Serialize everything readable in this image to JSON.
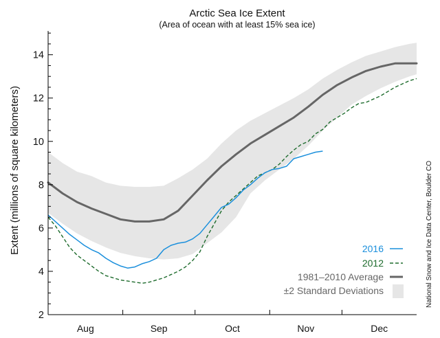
{
  "chart_data": {
    "type": "line",
    "title": "Arctic Sea Ice Extent",
    "subtitle": "(Area of ocean with at least 15% sea ice)",
    "xlabel": "",
    "ylabel": "Extent (millions of square kilometers)",
    "ylim": [
      2,
      15.1
    ],
    "yticks": [
      2,
      4,
      6,
      8,
      10,
      12,
      14
    ],
    "xlim": [
      0,
      153
    ],
    "month_boundaries": [
      31,
      61,
      92,
      122
    ],
    "month_labels": [
      {
        "label": "Aug",
        "x": 15.5
      },
      {
        "label": "Sep",
        "x": 46
      },
      {
        "label": "Oct",
        "x": 76.5
      },
      {
        "label": "Nov",
        "x": 107
      },
      {
        "label": "Dec",
        "x": 137.5
      }
    ],
    "series": [
      {
        "name": "±2 Standard Deviations",
        "kind": "band",
        "color": "#e6e6e6",
        "x": [
          0,
          6,
          12,
          18,
          24,
          30,
          36,
          42,
          48,
          54,
          60,
          66,
          72,
          78,
          84,
          90,
          96,
          102,
          108,
          114,
          120,
          126,
          132,
          138,
          144,
          150,
          153
        ],
        "upper": [
          9.5,
          9.0,
          8.6,
          8.4,
          8.1,
          7.95,
          7.9,
          7.9,
          7.95,
          8.3,
          8.7,
          9.2,
          9.9,
          10.5,
          10.95,
          11.3,
          11.65,
          12.0,
          12.4,
          12.9,
          13.3,
          13.65,
          13.95,
          14.15,
          14.35,
          14.5,
          14.55
        ],
        "lower": [
          6.7,
          6.2,
          5.75,
          5.4,
          5.1,
          4.85,
          4.7,
          4.6,
          4.55,
          4.6,
          4.8,
          5.3,
          5.8,
          6.5,
          7.6,
          8.2,
          8.7,
          9.2,
          9.8,
          10.5,
          11.1,
          11.7,
          12.1,
          12.45,
          12.75,
          13.0,
          13.1
        ]
      },
      {
        "name": "1981–2010 Average",
        "color": "#666666",
        "x": [
          0,
          6,
          12,
          18,
          24,
          30,
          36,
          42,
          48,
          54,
          60,
          66,
          72,
          78,
          84,
          90,
          96,
          102,
          108,
          114,
          120,
          126,
          132,
          138,
          144,
          150,
          153
        ],
        "values": [
          8.1,
          7.6,
          7.2,
          6.9,
          6.65,
          6.4,
          6.3,
          6.3,
          6.4,
          6.8,
          7.5,
          8.2,
          8.85,
          9.4,
          9.9,
          10.3,
          10.7,
          11.1,
          11.6,
          12.15,
          12.6,
          12.95,
          13.25,
          13.45,
          13.6,
          13.6,
          13.6
        ]
      },
      {
        "name": "2016",
        "color": "#1a8fdc",
        "x": [
          0,
          3,
          6,
          9,
          12,
          15,
          18,
          21,
          24,
          27,
          30,
          33,
          36,
          39,
          42,
          45,
          48,
          51,
          54,
          57,
          60,
          63,
          66,
          69,
          72,
          75,
          78,
          81,
          84,
          87,
          90,
          93,
          96,
          99,
          102,
          105,
          108,
          111,
          114
        ],
        "values": [
          6.6,
          6.3,
          6.0,
          5.7,
          5.45,
          5.2,
          5.0,
          4.85,
          4.6,
          4.4,
          4.25,
          4.15,
          4.2,
          4.35,
          4.45,
          4.6,
          5.0,
          5.2,
          5.3,
          5.35,
          5.5,
          5.75,
          6.15,
          6.55,
          6.95,
          7.1,
          7.4,
          7.75,
          8.0,
          8.3,
          8.55,
          8.7,
          8.75,
          8.85,
          9.2,
          9.3,
          9.4,
          9.5,
          9.55
        ]
      },
      {
        "name": "2012",
        "color": "#1d6b2c",
        "dashed": true,
        "x": [
          0,
          3,
          6,
          9,
          12,
          15,
          18,
          21,
          24,
          27,
          30,
          33,
          36,
          39,
          42,
          45,
          48,
          51,
          54,
          57,
          60,
          63,
          66,
          69,
          72,
          75,
          78,
          81,
          84,
          87,
          90,
          93,
          96,
          99,
          102,
          105,
          108,
          111,
          114,
          117,
          120,
          123,
          126,
          129,
          132,
          135,
          138,
          141,
          144,
          147,
          150,
          153
        ],
        "values": [
          6.5,
          6.1,
          5.6,
          5.1,
          4.75,
          4.5,
          4.25,
          4.0,
          3.8,
          3.7,
          3.6,
          3.55,
          3.5,
          3.45,
          3.5,
          3.6,
          3.7,
          3.85,
          4.0,
          4.2,
          4.5,
          4.9,
          5.6,
          6.2,
          6.8,
          7.2,
          7.5,
          7.8,
          8.1,
          8.4,
          8.55,
          8.7,
          8.95,
          9.3,
          9.6,
          9.85,
          10.0,
          10.35,
          10.55,
          10.9,
          11.1,
          11.3,
          11.55,
          11.75,
          11.8,
          11.95,
          12.1,
          12.3,
          12.5,
          12.65,
          12.8,
          12.9
        ]
      }
    ],
    "legend": {
      "position": "bottom-right",
      "entries": [
        "2016",
        "2012",
        "1981–2010 Average",
        "±2 Standard Deviations"
      ]
    }
  },
  "credit": "National Snow and Ice Data Center, Boulder CO"
}
